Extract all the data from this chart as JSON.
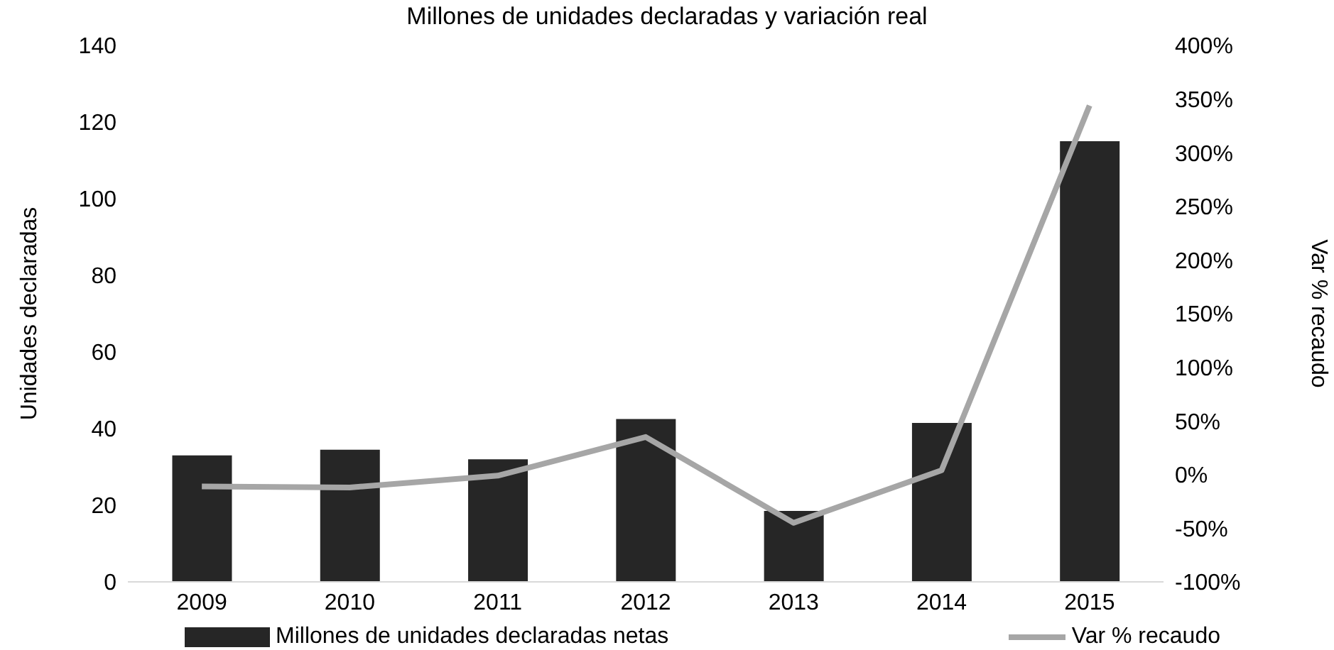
{
  "chart_data": {
    "type": "bar",
    "title": "Millones de unidades declaradas y variación real",
    "ylabel": "Unidades declaradas",
    "y2label": "Var % recaudo",
    "categories": [
      "2009",
      "2010",
      "2011",
      "2012",
      "2013",
      "2014",
      "2015"
    ],
    "series": [
      {
        "name": "Millones de unidades declaradas netas",
        "color": "#262626",
        "values": [
          33,
          34.5,
          32,
          42.5,
          18.5,
          41.5,
          115
        ]
      },
      {
        "name": "Var % recaudo",
        "type": "line",
        "axis": "y2",
        "color": "#a6a6a6",
        "marker": "none",
        "values": [
          -11,
          -12,
          -1,
          35,
          -45,
          4,
          344
        ]
      }
    ],
    "ylim": [
      0,
      140
    ],
    "yticks": [
      0,
      20,
      40,
      60,
      80,
      100,
      120,
      140
    ],
    "y2lim": [
      -100,
      400
    ],
    "y2ticks": [
      {
        "value": -100,
        "label": "-100%"
      },
      {
        "value": -50,
        "label": "-50%"
      },
      {
        "value": 0,
        "label": "0%"
      },
      {
        "value": 50,
        "label": "50%"
      },
      {
        "value": 100,
        "label": "100%"
      },
      {
        "value": 150,
        "label": "150%"
      },
      {
        "value": 200,
        "label": "200%"
      },
      {
        "value": 250,
        "label": "250%"
      },
      {
        "value": 300,
        "label": "300%"
      },
      {
        "value": 350,
        "label": "350%"
      },
      {
        "value": 400,
        "label": "400%"
      }
    ],
    "grid": false,
    "legend": "bottom"
  }
}
